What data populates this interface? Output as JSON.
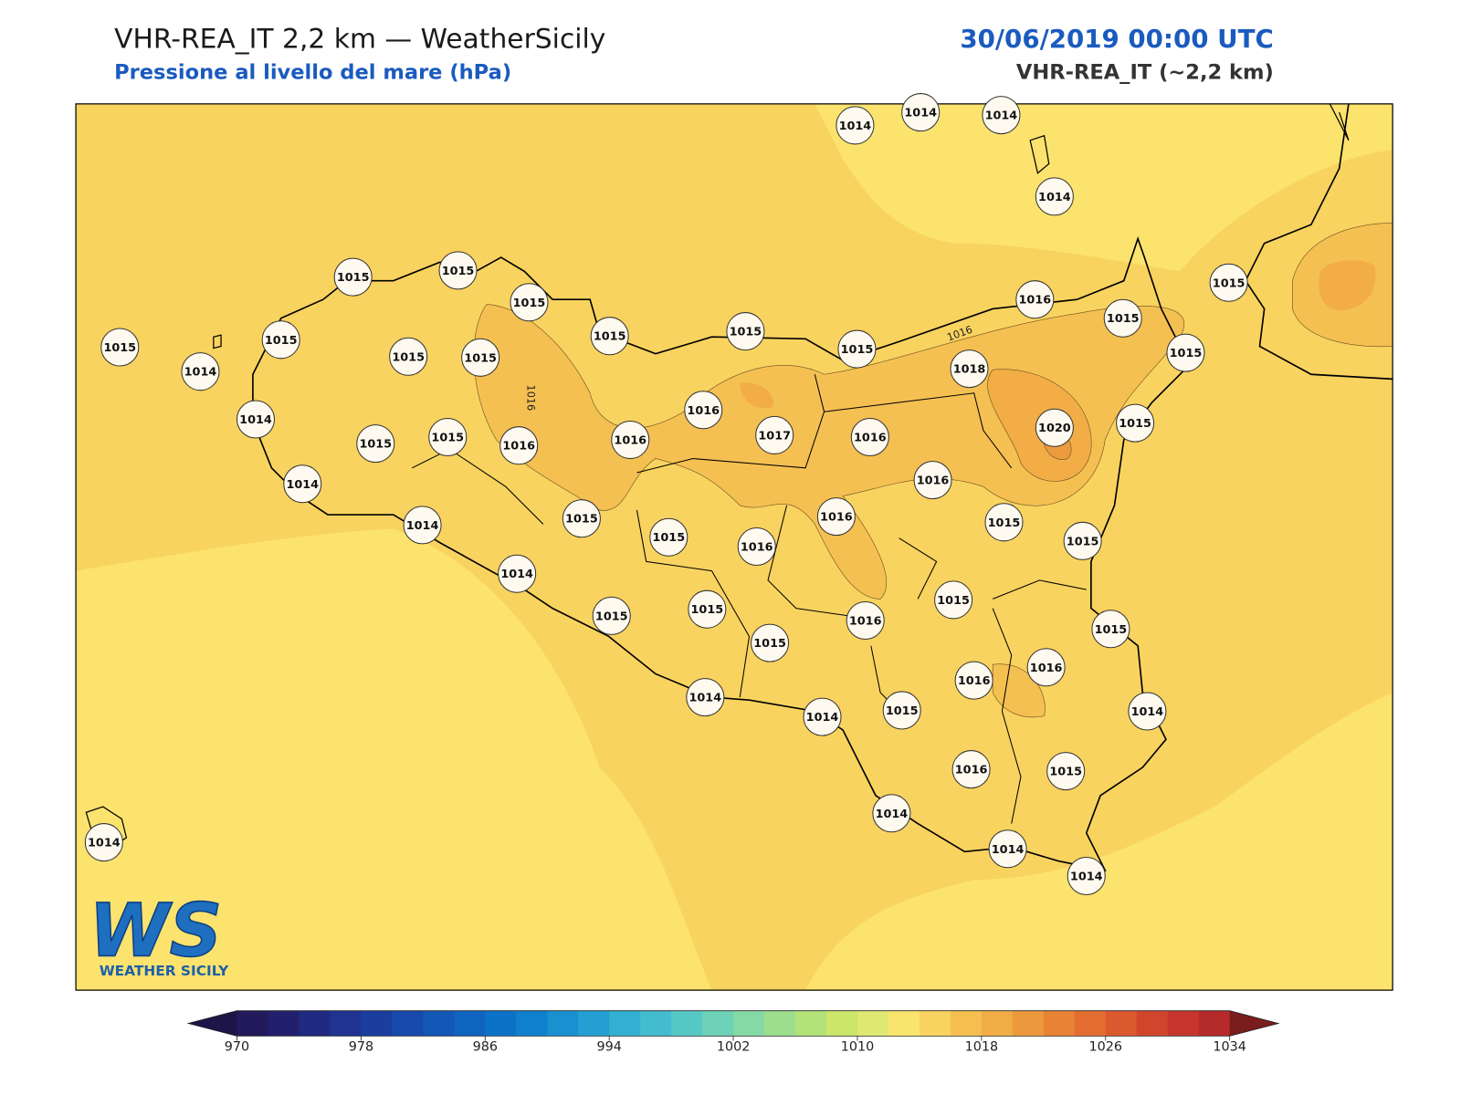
{
  "header": {
    "title": "VHR-REA_IT 2,2 km — WeatherSicily",
    "subtitle": "Pressione al livello del mare (hPa)",
    "datetime": "30/06/2019 00:00 UTC",
    "model": "VHR-REA_IT (~2,2 km)"
  },
  "stations": [
    1014,
    1014,
    1014,
    1014,
    1015,
    1015,
    1015,
    1015,
    1015,
    1015,
    1014,
    1015,
    1015,
    1015,
    1015,
    1016,
    1015,
    1015,
    1015,
    1018,
    1016,
    1017,
    1016,
    1016,
    1015,
    1015,
    1014,
    1014,
    1016,
    1020,
    1015,
    1016,
    1015,
    1015,
    1014,
    1015,
    1015,
    1016,
    1016,
    1014,
    1015,
    1015,
    1015,
    1016,
    1015,
    1015,
    1016,
    1016,
    1014,
    1014,
    1014,
    1015,
    1016,
    1015,
    1014,
    1014,
    1014,
    1014
  ],
  "contour_labels": [
    1016,
    1016
  ],
  "logo": {
    "mark": "WS",
    "text": "WEATHER SICILY"
  },
  "colorbar": {
    "ticks": [
      970,
      978,
      986,
      994,
      1002,
      1010,
      1018,
      1026,
      1034
    ],
    "colors": [
      "#221a5a",
      "#22206e",
      "#202a80",
      "#1e3490",
      "#1b3e9e",
      "#174aab",
      "#1357b7",
      "#0f64c0",
      "#0c72c8",
      "#0f80cd",
      "#1990d0",
      "#259fd3",
      "#33afd2",
      "#43bccf",
      "#56c8c6",
      "#6dd1b7",
      "#84d9a4",
      "#9bdf8e",
      "#b3e378",
      "#cbe66a",
      "#dfe872",
      "#f9e46d",
      "#f9d35f",
      "#f5bf4f",
      "#f1ad45",
      "#ec993d",
      "#e88336",
      "#e36d31",
      "#dc582e",
      "#d2452d",
      "#c5352d",
      "#b52a2a"
    ],
    "under_color": "#1d1548",
    "over_color": "#7a1d1d"
  }
}
